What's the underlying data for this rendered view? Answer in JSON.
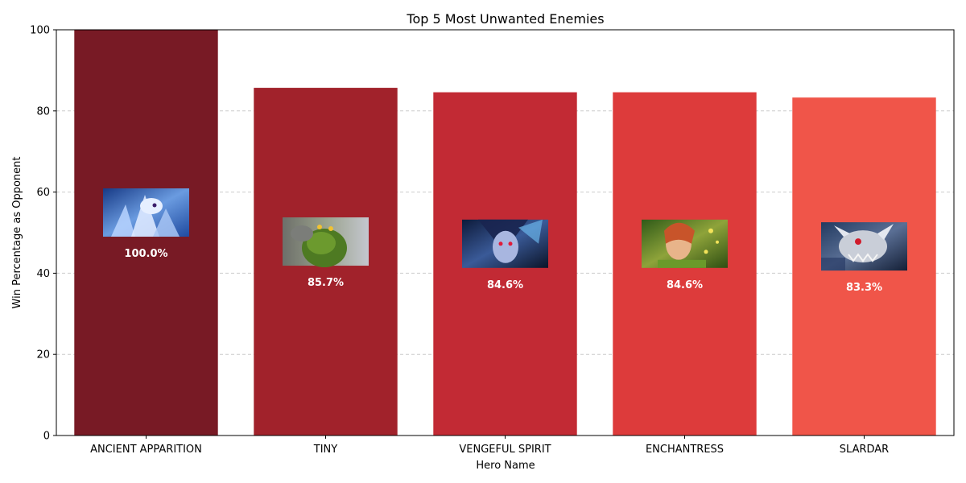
{
  "chart_data": {
    "type": "bar",
    "title": "Top 5 Most Unwanted Enemies",
    "xlabel": "Hero Name",
    "ylabel": "Win Percentage as Opponent",
    "categories": [
      "ANCIENT APPARITION",
      "TINY",
      "VENGEFUL SPIRIT",
      "ENCHANTRESS",
      "SLARDAR"
    ],
    "values": [
      100.0,
      85.7,
      84.6,
      84.6,
      83.3
    ],
    "value_labels": [
      "100.0%",
      "85.7%",
      "84.6%",
      "84.6%",
      "83.3%"
    ],
    "ylim": [
      0,
      100
    ],
    "yticks": [
      0,
      20,
      40,
      60,
      80,
      100
    ],
    "grid": "y-dashed",
    "bar_colors": [
      "#781a25",
      "#a1222b",
      "#c22a34",
      "#dd3b3b",
      "#f05549"
    ],
    "hero_images": [
      "ancient-apparition-portrait",
      "tiny-portrait",
      "vengeful-spirit-portrait",
      "enchantress-portrait",
      "slardar-portrait"
    ]
  }
}
